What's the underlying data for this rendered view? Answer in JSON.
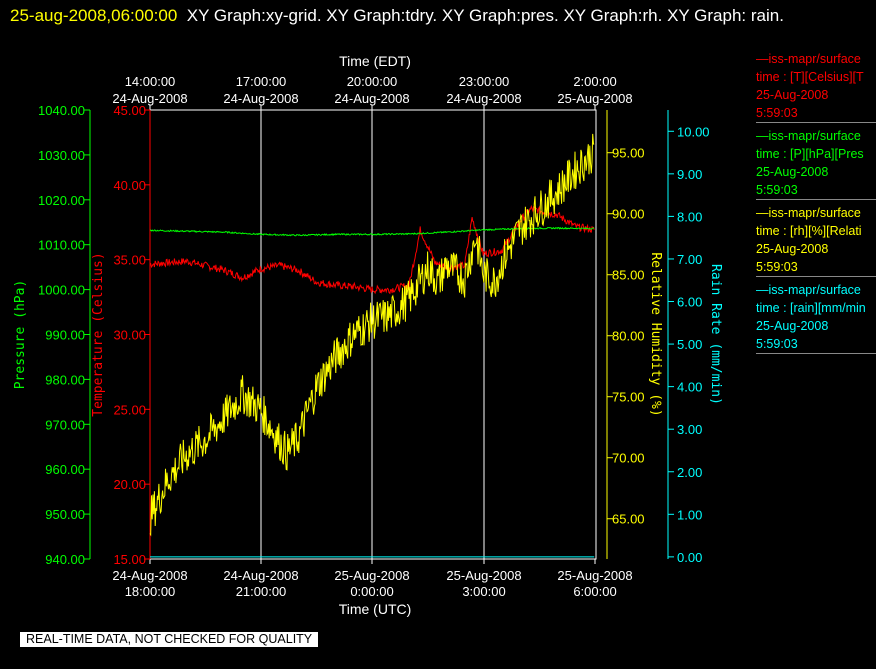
{
  "header": {
    "timestamp": "25-aug-2008,06:00:00",
    "titles": "XY Graph:xy-grid.  XY Graph:tdry.  XY Graph:pres.  XY Graph:rh.  XY Graph: rain."
  },
  "footer": {
    "note": "REAL-TIME DATA, NOT CHECKED FOR QUALITY"
  },
  "legend": [
    {
      "line1": "—iss-mapr/surface",
      "line2": "time : [T][Celsius][T",
      "line3": "25-Aug-2008",
      "line4": "5:59:03",
      "color": "#ff0000"
    },
    {
      "line1": "—iss-mapr/surface",
      "line2": "time : [P][hPa][Pres",
      "line3": "25-Aug-2008",
      "line4": "5:59:03",
      "color": "#00ff00"
    },
    {
      "line1": "—iss-mapr/surface",
      "line2": "time : [rh][%][Relati",
      "line3": "25-Aug-2008",
      "line4": "5:59:03",
      "color": "#ffff00"
    },
    {
      "line1": "—iss-mapr/surface",
      "line2": "time : [rain][mm/min",
      "line3": "25-Aug-2008",
      "line4": "5:59:03",
      "color": "#00ffff"
    }
  ],
  "chart_data": {
    "type": "line",
    "grid": true,
    "x_top": {
      "title": "Time (EDT)",
      "ticks": [
        {
          "time": "14:00:00",
          "date": "24-Aug-2008"
        },
        {
          "time": "17:00:00",
          "date": "24-Aug-2008"
        },
        {
          "time": "20:00:00",
          "date": "24-Aug-2008"
        },
        {
          "time": "23:00:00",
          "date": "24-Aug-2008"
        },
        {
          "time": "2:00:00",
          "date": "25-Aug-2008"
        }
      ]
    },
    "x_bottom": {
      "title": "Time (UTC)",
      "range": [
        "2008-08-24 18:00",
        "2008-08-25 06:00"
      ],
      "ticks": [
        {
          "date": "24-Aug-2008",
          "time": "18:00:00"
        },
        {
          "date": "24-Aug-2008",
          "time": "21:00:00"
        },
        {
          "date": "25-Aug-2008",
          "time": "0:00:00"
        },
        {
          "date": "25-Aug-2008",
          "time": "3:00:00"
        },
        {
          "date": "25-Aug-2008",
          "time": "6:00:00"
        }
      ]
    },
    "axes": {
      "pressure": {
        "label": "Pressure (hPa)",
        "color": "#00ff00",
        "range": [
          940,
          1040
        ],
        "ticks": [
          "940.00",
          "950.00",
          "960.00",
          "970.00",
          "980.00",
          "990.00",
          "1000.00",
          "1010.00",
          "1020.00",
          "1030.00",
          "1040.00"
        ]
      },
      "temperature": {
        "label": "Temperature (Celsius)",
        "color": "#ff0000",
        "range": [
          15,
          45
        ],
        "ticks": [
          "15.00",
          "20.00",
          "25.00",
          "30.00",
          "35.00",
          "40.00",
          "45.00"
        ]
      },
      "humidity": {
        "label": "Relative Humidity (%)",
        "color": "#ffff00",
        "range": [
          61.7,
          98.5
        ],
        "ticks": [
          "65.00",
          "70.00",
          "75.00",
          "80.00",
          "85.00",
          "90.00",
          "95.00"
        ]
      },
      "rain": {
        "label": "Rain Rate (mm/min)",
        "color": "#00ffff",
        "range": [
          -0.05,
          10.5
        ],
        "ticks": [
          "0.00",
          "1.00",
          "2.00",
          "3.00",
          "4.00",
          "5.00",
          "6.00",
          "7.00",
          "8.00",
          "9.00",
          "10.00"
        ]
      }
    },
    "series": [
      {
        "axis": "temperature",
        "color": "#ff0000",
        "points": [
          [
            0,
            34.7
          ],
          [
            0.5,
            34.8
          ],
          [
            1.0,
            34.9
          ],
          [
            1.5,
            34.6
          ],
          [
            2.0,
            34.3
          ],
          [
            2.5,
            33.8
          ],
          [
            3.0,
            34.4
          ],
          [
            3.5,
            34.6
          ],
          [
            4.0,
            34.3
          ],
          [
            4.5,
            33.5
          ],
          [
            5.0,
            33.3
          ],
          [
            5.5,
            33.2
          ],
          [
            6.0,
            33.0
          ],
          [
            6.5,
            33.0
          ],
          [
            7.0,
            33.3
          ],
          [
            7.3,
            37.0
          ],
          [
            7.7,
            34.8
          ],
          [
            8.0,
            34.5
          ],
          [
            8.5,
            34.6
          ],
          [
            8.7,
            37.8
          ],
          [
            9.0,
            35.4
          ],
          [
            9.5,
            35.6
          ],
          [
            10.0,
            37.6
          ],
          [
            10.3,
            38.4
          ],
          [
            11.0,
            38.0
          ],
          [
            11.5,
            37.2
          ],
          [
            12.0,
            37.0
          ],
          [
            12.4,
            37.0
          ],
          [
            12.5,
            35.0
          ],
          [
            13.0,
            34.5
          ],
          [
            13.5,
            34.2
          ],
          [
            14.0,
            33.7
          ],
          [
            14.5,
            33.4
          ],
          [
            15.0,
            33.3
          ]
        ]
      },
      {
        "axis": "pressure",
        "color": "#00ff00",
        "points": [
          [
            0,
            1013.2
          ],
          [
            1,
            1013.0
          ],
          [
            2,
            1012.8
          ],
          [
            3,
            1012.3
          ],
          [
            4,
            1012.1
          ],
          [
            5,
            1012.3
          ],
          [
            6,
            1012.3
          ],
          [
            7,
            1012.4
          ],
          [
            8,
            1012.8
          ],
          [
            9,
            1013.3
          ],
          [
            10,
            1013.6
          ],
          [
            11,
            1013.7
          ],
          [
            12,
            1013.6
          ],
          [
            13,
            1013.4
          ],
          [
            14,
            1013.3
          ],
          [
            15,
            1013.2
          ]
        ]
      },
      {
        "axis": "humidity",
        "color": "#ffff00",
        "points": [
          [
            0,
            65.1
          ],
          [
            0.5,
            68.3
          ],
          [
            1.0,
            70.3
          ],
          [
            1.5,
            71.5
          ],
          [
            2.0,
            73.3
          ],
          [
            2.5,
            75.2
          ],
          [
            3.0,
            73.9
          ],
          [
            3.3,
            72.3
          ],
          [
            3.7,
            70.4
          ],
          [
            4.0,
            71.6
          ],
          [
            4.5,
            75.8
          ],
          [
            5.0,
            78.2
          ],
          [
            5.5,
            80.1
          ],
          [
            6.0,
            81.2
          ],
          [
            6.5,
            81.7
          ],
          [
            7.0,
            83.0
          ],
          [
            7.5,
            85.5
          ],
          [
            7.8,
            84.4
          ],
          [
            8.0,
            85.8
          ],
          [
            8.5,
            84.7
          ],
          [
            8.8,
            88.1
          ],
          [
            9.0,
            85.1
          ],
          [
            9.3,
            84.4
          ],
          [
            9.6,
            86.6
          ],
          [
            10.0,
            88.8
          ],
          [
            10.5,
            90.3
          ],
          [
            11.0,
            91.8
          ],
          [
            11.5,
            93.6
          ],
          [
            12.0,
            95.1
          ],
          [
            12.3,
            93.1
          ],
          [
            12.8,
            92.4
          ],
          [
            13.3,
            93.2
          ],
          [
            13.8,
            94.8
          ],
          [
            14.3,
            95.1
          ],
          [
            14.7,
            95.8
          ],
          [
            15.0,
            97.0
          ]
        ]
      },
      {
        "axis": "rain",
        "color": "#00ffff",
        "points": [
          [
            0,
            0.0
          ],
          [
            15,
            0.0
          ]
        ]
      }
    ]
  }
}
